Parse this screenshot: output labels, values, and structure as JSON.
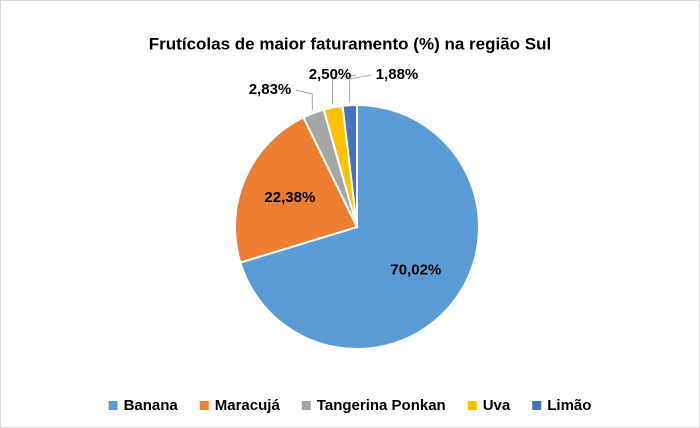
{
  "chart_data": {
    "type": "pie",
    "title": "Frutícolas de maior faturamento (%) na região Sul",
    "categories": [
      "Banana",
      "Maracujá",
      "Tangerina Ponkan",
      "Uva",
      "Limão"
    ],
    "values": [
      70.02,
      22.38,
      2.83,
      2.5,
      1.88
    ],
    "value_labels": [
      "70,02%",
      "22,38%",
      "2,83%",
      "2,50%",
      "1,88%"
    ],
    "colors": [
      "#5b9bd5",
      "#ed7d31",
      "#a5a5a5",
      "#ffc000",
      "#4472c4"
    ],
    "legend": "bottom"
  }
}
